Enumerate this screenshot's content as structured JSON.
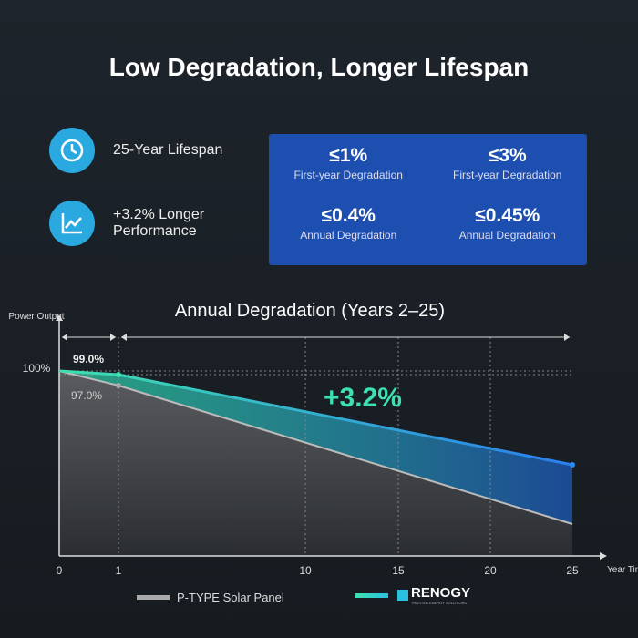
{
  "title": "Low Degradation, Longer Lifespan",
  "features": [
    {
      "icon": "clock-icon",
      "label": "25-Year Lifespan"
    },
    {
      "icon": "chart-up-icon",
      "label": "+3.2% Longer Performance"
    }
  ],
  "stats": [
    {
      "value": "≤1%",
      "label": "First-year Degradation"
    },
    {
      "value": "≤3%",
      "label": "First-year Degradation"
    },
    {
      "value": "≤0.4%",
      "label": "Annual Degradation"
    },
    {
      "value": "≤0.45%",
      "label": "Annual Degradation"
    }
  ],
  "chart_data": {
    "type": "area",
    "title": "Annual Degradation (Years 2–25)",
    "xlabel": "Year Time",
    "ylabel": "Power Output",
    "xticks": [
      0,
      1,
      10,
      15,
      20,
      25
    ],
    "ytick_label": "100%",
    "annotations": [
      "99.0%",
      "97.0%",
      "+3.2%"
    ],
    "series": [
      {
        "name": "RENOGY",
        "color": "#2a8cf0",
        "x": [
          0,
          1,
          25
        ],
        "y": [
          100,
          99.0,
          89.4
        ]
      },
      {
        "name": "P-TYPE Solar Panel",
        "color": "#a0a0a0",
        "x": [
          0,
          1,
          25
        ],
        "y": [
          100,
          97.0,
          86.2
        ]
      }
    ],
    "xlim": [
      0,
      25
    ]
  },
  "legend": {
    "ptype": "P-TYPE Solar Panel",
    "brand": "RENOGY",
    "brand_tag": "TRUSTED ENERGY SOLUTIONS"
  }
}
